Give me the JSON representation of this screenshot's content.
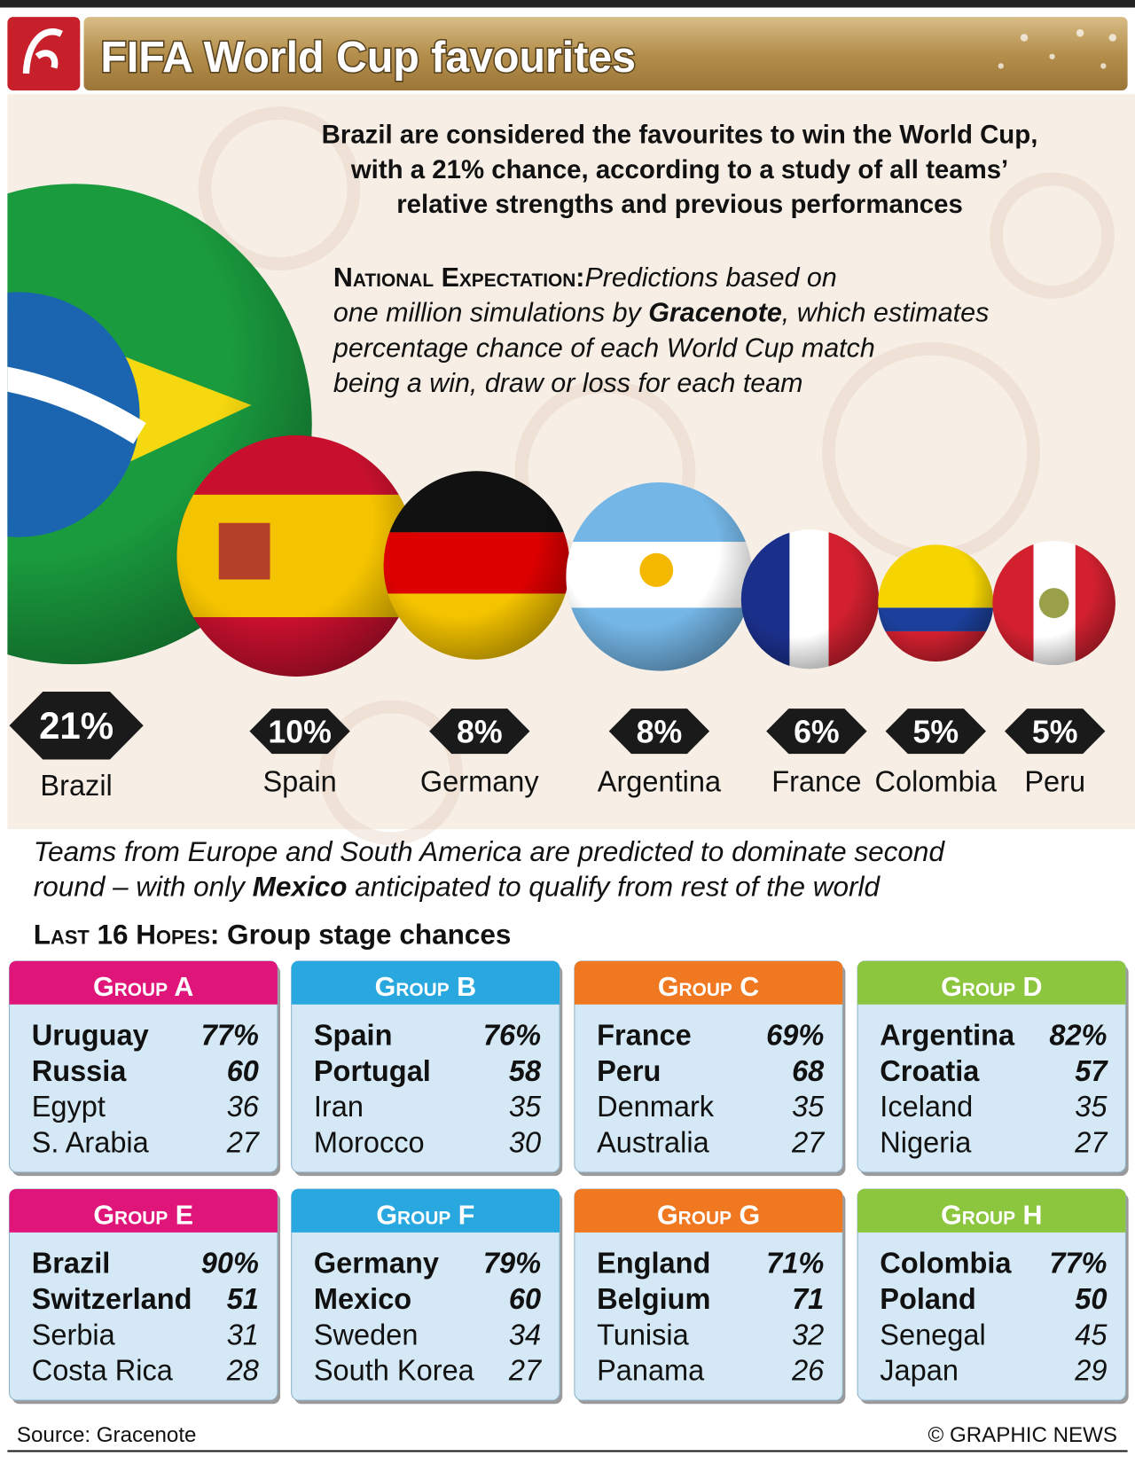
{
  "header": {
    "title": "FIFA World Cup favourites"
  },
  "intro": [
    "Brazil are considered the favourites to win the World Cup,",
    "with a 21% chance, according to a study of all teams’",
    "relative strengths and previous performances"
  ],
  "national_expectation": {
    "label": "National Expectation:",
    "line1": "Predictions based on",
    "line2": [
      "one million simulations by ",
      "Gracenote",
      ", which estimates"
    ],
    "line3": "percentage chance of each World Cup match",
    "line4": "being a win, draw or loss for each team"
  },
  "favourites": [
    {
      "pct": "21%",
      "team": "Brazil"
    },
    {
      "pct": "10%",
      "team": "Spain"
    },
    {
      "pct": "8%",
      "team": "Germany"
    },
    {
      "pct": "8%",
      "team": "Argentina"
    },
    {
      "pct": "6%",
      "team": "France"
    },
    {
      "pct": "5%",
      "team": "Colombia"
    },
    {
      "pct": "5%",
      "team": "Peru"
    }
  ],
  "note": {
    "line1": "Teams from Europe and South America are predicted to dominate second",
    "line2": [
      "round – with only ",
      "Mexico",
      " anticipated to qualify from rest of the world"
    ]
  },
  "section": {
    "label": "Last 16 Hopes:",
    "title": " Group stage chances"
  },
  "groups": [
    {
      "name": "Group A",
      "rows": [
        [
          "Uruguay",
          "77%"
        ],
        [
          "Russia",
          "60"
        ],
        [
          "Egypt",
          "36"
        ],
        [
          "S. Arabia",
          "27"
        ]
      ]
    },
    {
      "name": "Group B",
      "rows": [
        [
          "Spain",
          "76%"
        ],
        [
          "Portugal",
          "58"
        ],
        [
          "Iran",
          "35"
        ],
        [
          "Morocco",
          "30"
        ]
      ]
    },
    {
      "name": "Group C",
      "rows": [
        [
          "France",
          "69%"
        ],
        [
          "Peru",
          "68"
        ],
        [
          "Denmark",
          "35"
        ],
        [
          "Australia",
          "27"
        ]
      ]
    },
    {
      "name": "Group D",
      "rows": [
        [
          "Argentina",
          "82%"
        ],
        [
          "Croatia",
          "57"
        ],
        [
          "Iceland",
          "35"
        ],
        [
          "Nigeria",
          "27"
        ]
      ]
    },
    {
      "name": "Group E",
      "rows": [
        [
          "Brazil",
          "90%"
        ],
        [
          "Switzerland",
          "51"
        ],
        [
          "Serbia",
          "31"
        ],
        [
          "Costa Rica",
          "28"
        ]
      ]
    },
    {
      "name": "Group F",
      "rows": [
        [
          "Germany",
          "79%"
        ],
        [
          "Mexico",
          "60"
        ],
        [
          "Sweden",
          "34"
        ],
        [
          "South Korea",
          "27"
        ]
      ]
    },
    {
      "name": "Group G",
      "rows": [
        [
          "England",
          "71%"
        ],
        [
          "Belgium",
          "71"
        ],
        [
          "Tunisia",
          "32"
        ],
        [
          "Panama",
          "26"
        ]
      ]
    },
    {
      "name": "Group H",
      "rows": [
        [
          "Colombia",
          "77%"
        ],
        [
          "Poland",
          "50"
        ],
        [
          "Senegal",
          "45"
        ],
        [
          "Japan",
          "29"
        ]
      ]
    }
  ],
  "footer": {
    "source": "Source: Gracenote",
    "credit": "© GRAPHIC NEWS"
  }
}
